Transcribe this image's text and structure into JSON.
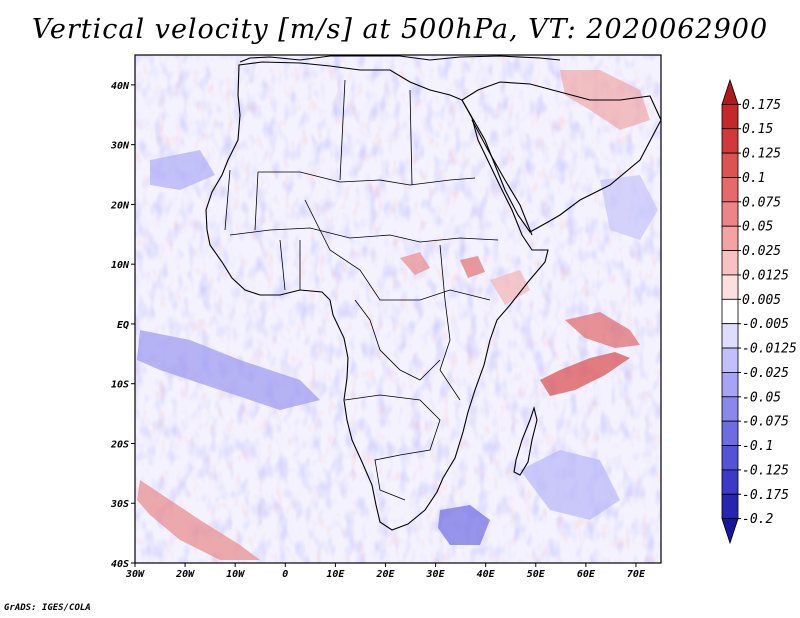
{
  "title": "Vertical velocity [m/s] at 500hPa, VT: 2020062900",
  "credit": "GrADS: IGES/COLA",
  "map": {
    "lon_range": [
      -30,
      75
    ],
    "lat_range": [
      -40,
      45
    ],
    "lon_ticks": [
      {
        "value": -30,
        "label": "30W"
      },
      {
        "value": -20,
        "label": "20W"
      },
      {
        "value": -10,
        "label": "10W"
      },
      {
        "value": 0,
        "label": "0"
      },
      {
        "value": 10,
        "label": "10E"
      },
      {
        "value": 20,
        "label": "20E"
      },
      {
        "value": 30,
        "label": "30E"
      },
      {
        "value": 40,
        "label": "40E"
      },
      {
        "value": 50,
        "label": "50E"
      },
      {
        "value": 60,
        "label": "60E"
      },
      {
        "value": 70,
        "label": "70E"
      }
    ],
    "lat_ticks": [
      {
        "value": 40,
        "label": "40N"
      },
      {
        "value": 30,
        "label": "30N"
      },
      {
        "value": 20,
        "label": "20N"
      },
      {
        "value": 10,
        "label": "10N"
      },
      {
        "value": 0,
        "label": "EQ"
      },
      {
        "value": -10,
        "label": "10S"
      },
      {
        "value": -20,
        "label": "20S"
      },
      {
        "value": -30,
        "label": "30S"
      },
      {
        "value": -40,
        "label": "40S"
      }
    ],
    "background": "#f4f2ff",
    "coast_color": "#000000"
  },
  "colorbar": {
    "labels": [
      "0.175",
      "0.15",
      "0.125",
      "0.1",
      "0.075",
      "0.05",
      "0.025",
      "0.0125",
      "0.005",
      "-0.005",
      "-0.0125",
      "-0.025",
      "-0.05",
      "-0.075",
      "-0.1",
      "-0.125",
      "-0.175",
      "-0.2"
    ],
    "colors": [
      "#b01a1a",
      "#c42828",
      "#d23a3a",
      "#de5252",
      "#e76a6a",
      "#ee8585",
      "#f4a3a3",
      "#f8c2c2",
      "#fbe0e0",
      "#ffffff",
      "#dedcff",
      "#c2c0fa",
      "#a6a4f4",
      "#8a88ec",
      "#6e6ce2",
      "#5452d6",
      "#3b39c6",
      "#2625b2",
      "#18179c"
    ]
  }
}
